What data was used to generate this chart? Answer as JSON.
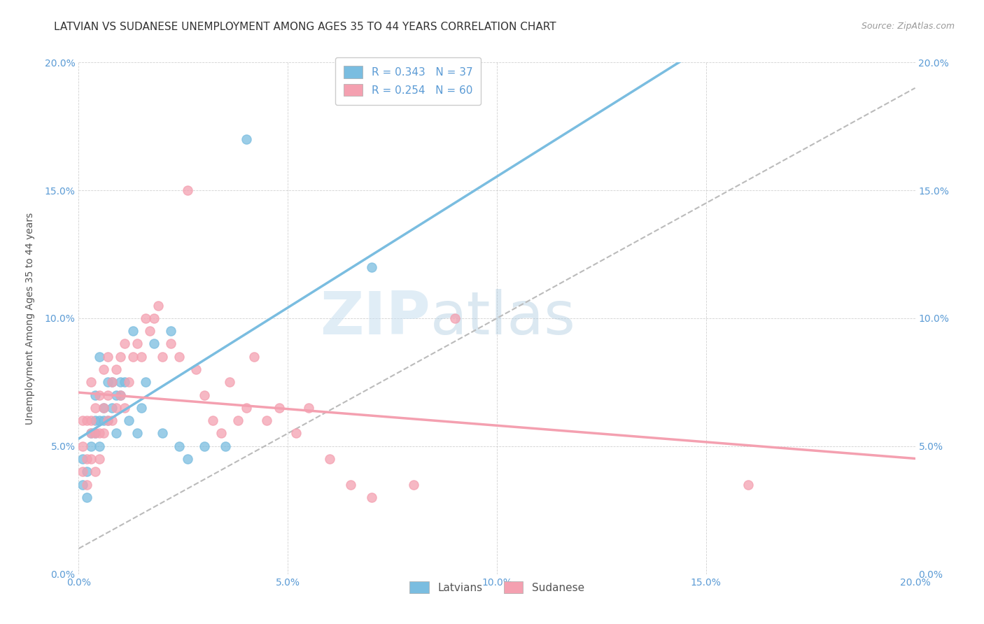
{
  "title": "LATVIAN VS SUDANESE UNEMPLOYMENT AMONG AGES 35 TO 44 YEARS CORRELATION CHART",
  "source": "Source: ZipAtlas.com",
  "ylabel": "Unemployment Among Ages 35 to 44 years",
  "xlim": [
    0.0,
    0.2
  ],
  "ylim": [
    0.0,
    0.2
  ],
  "latvian_color": "#7abde0",
  "sudanese_color": "#f4a0b0",
  "latvian_R": 0.343,
  "latvian_N": 37,
  "sudanese_R": 0.254,
  "sudanese_N": 60,
  "watermark_zip": "ZIP",
  "watermark_atlas": "atlas",
  "latvian_x": [
    0.001,
    0.001,
    0.002,
    0.002,
    0.003,
    0.003,
    0.004,
    0.004,
    0.004,
    0.005,
    0.005,
    0.005,
    0.006,
    0.006,
    0.007,
    0.007,
    0.008,
    0.008,
    0.009,
    0.009,
    0.01,
    0.01,
    0.011,
    0.012,
    0.013,
    0.014,
    0.015,
    0.016,
    0.018,
    0.02,
    0.022,
    0.024,
    0.026,
    0.03,
    0.035,
    0.04,
    0.07
  ],
  "latvian_y": [
    0.035,
    0.045,
    0.03,
    0.04,
    0.05,
    0.055,
    0.055,
    0.06,
    0.07,
    0.05,
    0.06,
    0.085,
    0.06,
    0.065,
    0.06,
    0.075,
    0.065,
    0.075,
    0.055,
    0.07,
    0.07,
    0.075,
    0.075,
    0.06,
    0.095,
    0.055,
    0.065,
    0.075,
    0.09,
    0.055,
    0.095,
    0.05,
    0.045,
    0.05,
    0.05,
    0.17,
    0.12
  ],
  "sudanese_x": [
    0.001,
    0.001,
    0.001,
    0.002,
    0.002,
    0.002,
    0.003,
    0.003,
    0.003,
    0.003,
    0.004,
    0.004,
    0.004,
    0.005,
    0.005,
    0.005,
    0.006,
    0.006,
    0.006,
    0.007,
    0.007,
    0.007,
    0.008,
    0.008,
    0.009,
    0.009,
    0.01,
    0.01,
    0.011,
    0.011,
    0.012,
    0.013,
    0.014,
    0.015,
    0.016,
    0.017,
    0.018,
    0.019,
    0.02,
    0.022,
    0.024,
    0.026,
    0.028,
    0.03,
    0.032,
    0.034,
    0.036,
    0.038,
    0.04,
    0.042,
    0.045,
    0.048,
    0.052,
    0.055,
    0.06,
    0.065,
    0.07,
    0.08,
    0.09,
    0.16
  ],
  "sudanese_y": [
    0.04,
    0.05,
    0.06,
    0.035,
    0.045,
    0.06,
    0.045,
    0.055,
    0.06,
    0.075,
    0.04,
    0.055,
    0.065,
    0.045,
    0.055,
    0.07,
    0.055,
    0.065,
    0.08,
    0.06,
    0.07,
    0.085,
    0.06,
    0.075,
    0.065,
    0.08,
    0.07,
    0.085,
    0.065,
    0.09,
    0.075,
    0.085,
    0.09,
    0.085,
    0.1,
    0.095,
    0.1,
    0.105,
    0.085,
    0.09,
    0.085,
    0.15,
    0.08,
    0.07,
    0.06,
    0.055,
    0.075,
    0.06,
    0.065,
    0.085,
    0.06,
    0.065,
    0.055,
    0.065,
    0.045,
    0.035,
    0.03,
    0.035,
    0.1,
    0.035
  ],
  "title_fontsize": 11,
  "axis_label_fontsize": 10,
  "tick_fontsize": 10,
  "legend_fontsize": 11,
  "tick_color": "#5b9bd5"
}
